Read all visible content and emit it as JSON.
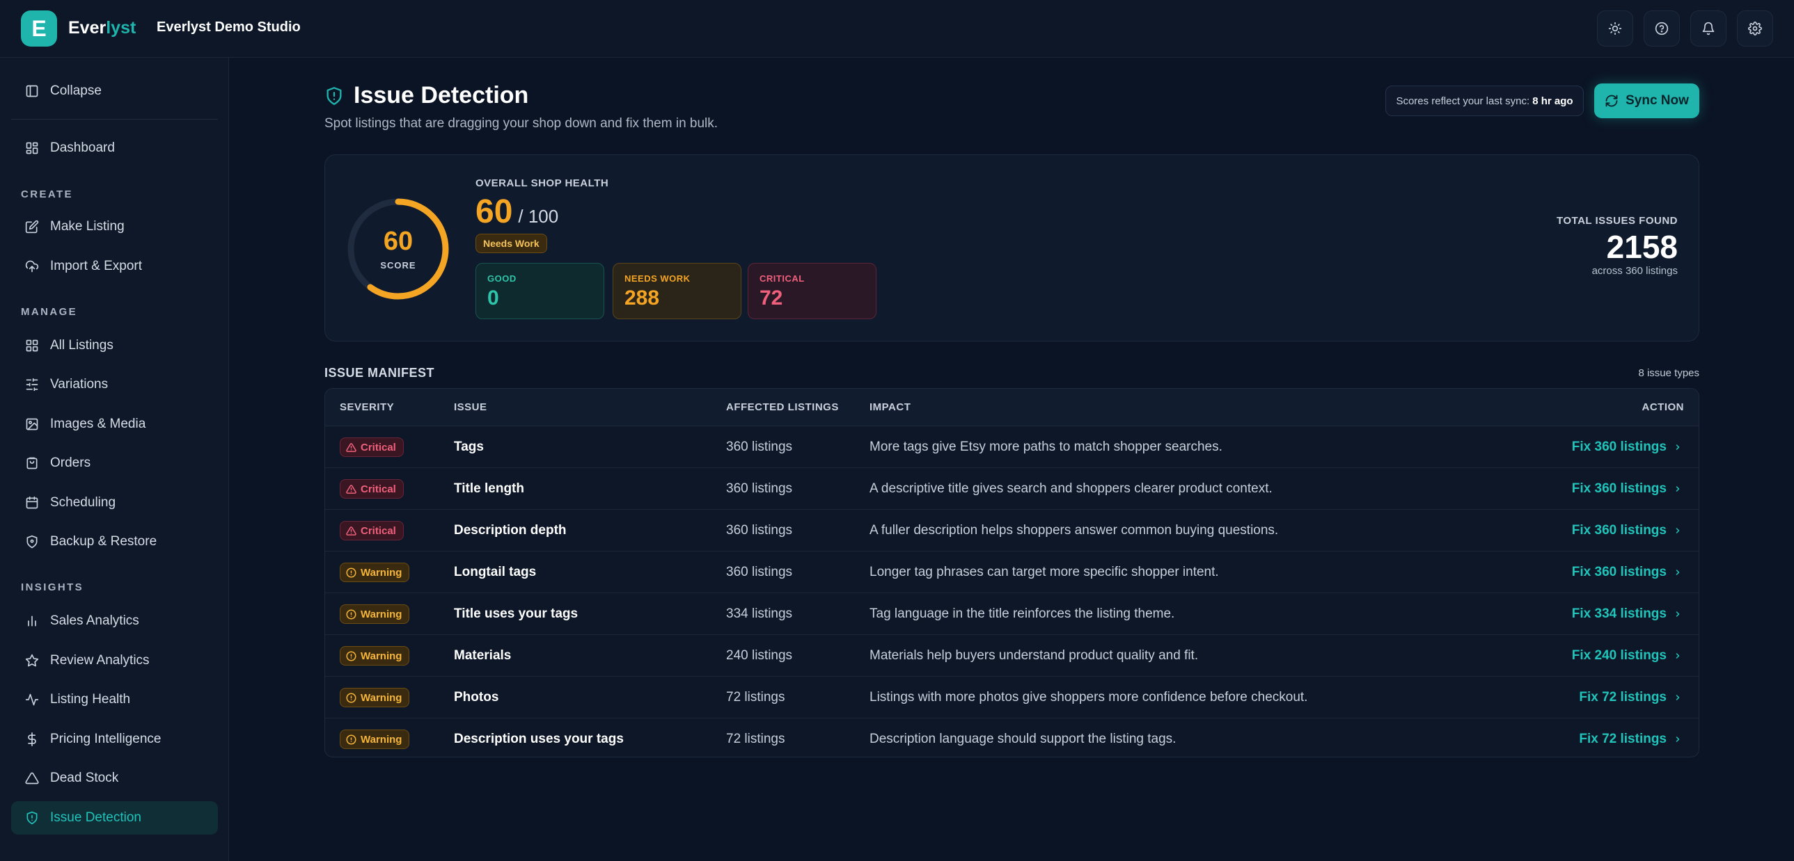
{
  "app": {
    "logo_letter": "E",
    "brand_main": "Ever",
    "brand_accent": "lyst",
    "studio": "Everlyst Demo Studio",
    "accent_color": "#1fb5ad"
  },
  "topbar": {
    "icons": [
      "sun-icon",
      "help-icon",
      "bell-icon",
      "gear-icon"
    ]
  },
  "sidebar": {
    "collapse_label": "Collapse",
    "dashboard_label": "Dashboard",
    "sections": {
      "create": "CREATE",
      "manage": "MANAGE",
      "insights": "INSIGHTS"
    },
    "create_items": [
      "Make Listing",
      "Import & Export"
    ],
    "manage_items": [
      "All Listings",
      "Variations",
      "Images & Media",
      "Orders",
      "Scheduling",
      "Backup & Restore"
    ],
    "insights_items": [
      "Sales Analytics",
      "Review Analytics",
      "Listing Health",
      "Pricing Intelligence",
      "Dead Stock",
      "Issue Detection"
    ],
    "active_item": "Issue Detection"
  },
  "page": {
    "title": "Issue Detection",
    "subtitle": "Spot listings that are dragging your shop down and fix them in bulk.",
    "sync_note_prefix": "Scores reflect your last sync:",
    "sync_note_time": "8 hr ago",
    "sync_button": "Sync Now"
  },
  "health": {
    "score": "60",
    "score_value": 60,
    "score_label": "SCORE",
    "overall_label": "OVERALL SHOP HEALTH",
    "max": "/ 100",
    "status": "Needs Work",
    "good_label": "GOOD",
    "good_value": "0",
    "needs_label": "NEEDS WORK",
    "needs_value": "288",
    "critical_label": "CRITICAL",
    "critical_value": "72",
    "total_label": "TOTAL ISSUES FOUND",
    "total_value": "2158",
    "total_sub": "across 360 listings"
  },
  "manifest": {
    "title": "ISSUE MANIFEST",
    "count": "8 issue types",
    "columns": {
      "severity": "SEVERITY",
      "issue": "ISSUE",
      "affected": "AFFECTED LISTINGS",
      "impact": "IMPACT",
      "action": "ACTION"
    },
    "rows": [
      {
        "severity": "Critical",
        "issue": "Tags",
        "affected": "360 listings",
        "impact": "More tags give Etsy more paths to match shopper searches.",
        "action": "Fix 360 listings"
      },
      {
        "severity": "Critical",
        "issue": "Title length",
        "affected": "360 listings",
        "impact": "A descriptive title gives search and shoppers clearer product context.",
        "action": "Fix 360 listings"
      },
      {
        "severity": "Critical",
        "issue": "Description depth",
        "affected": "360 listings",
        "impact": "A fuller description helps shoppers answer common buying questions.",
        "action": "Fix 360 listings"
      },
      {
        "severity": "Warning",
        "issue": "Longtail tags",
        "affected": "360 listings",
        "impact": "Longer tag phrases can target more specific shopper intent.",
        "action": "Fix 360 listings"
      },
      {
        "severity": "Warning",
        "issue": "Title uses your tags",
        "affected": "334 listings",
        "impact": "Tag language in the title reinforces the listing theme.",
        "action": "Fix 334 listings"
      },
      {
        "severity": "Warning",
        "issue": "Materials",
        "affected": "240 listings",
        "impact": "Materials help buyers understand product quality and fit.",
        "action": "Fix 240 listings"
      },
      {
        "severity": "Warning",
        "issue": "Photos",
        "affected": "72 listings",
        "impact": "Listings with more photos give shoppers more confidence before checkout.",
        "action": "Fix 72 listings"
      },
      {
        "severity": "Warning",
        "issue": "Description uses your tags",
        "affected": "72 listings",
        "impact": "Description language should support the listing tags.",
        "action": "Fix 72 listings"
      }
    ]
  }
}
